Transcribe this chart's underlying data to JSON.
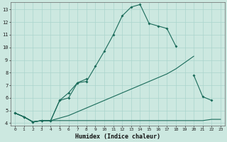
{
  "xlabel": "Humidex (Indice chaleur)",
  "bg_color": "#cce8e0",
  "grid_color": "#aad4cc",
  "line_color": "#1a6b5a",
  "xlim": [
    -0.5,
    23.5
  ],
  "ylim": [
    3.8,
    13.6
  ],
  "yticks": [
    4,
    5,
    6,
    7,
    8,
    9,
    10,
    11,
    12,
    13
  ],
  "xtick_labels": [
    "0",
    "1",
    "2",
    "3",
    "4",
    "5",
    "6",
    "7",
    "8",
    "9",
    "10",
    "11",
    "12",
    "13",
    "14",
    "15",
    "16",
    "17",
    "18",
    "19",
    "20",
    "21",
    "22",
    "23"
  ],
  "series": [
    {
      "x": [
        0,
        1,
        2,
        3,
        4,
        5,
        6,
        7,
        8,
        9,
        10,
        11,
        12,
        13,
        14,
        15,
        16,
        17,
        18,
        19,
        20,
        21,
        22,
        23
      ],
      "y": [
        4.8,
        4.5,
        4.1,
        4.2,
        4.2,
        4.2,
        4.2,
        4.2,
        4.2,
        4.2,
        4.2,
        4.2,
        4.2,
        4.2,
        4.2,
        4.2,
        4.2,
        4.2,
        4.2,
        4.2,
        4.2,
        4.2,
        4.3,
        4.3
      ],
      "marker": false
    },
    {
      "x": [
        0,
        1,
        2,
        3,
        4,
        5,
        6,
        7,
        8,
        9,
        10,
        11,
        12,
        13,
        14,
        15,
        16,
        17,
        18,
        19,
        20,
        21,
        22,
        23
      ],
      "y": [
        4.8,
        4.5,
        4.1,
        4.2,
        4.2,
        4.4,
        4.6,
        4.9,
        5.2,
        5.5,
        5.8,
        6.1,
        6.4,
        6.7,
        7.0,
        7.3,
        7.6,
        7.9,
        8.3,
        8.8,
        9.3,
        null,
        null,
        null
      ],
      "marker": false
    },
    {
      "x": [
        0,
        1,
        2,
        3,
        4,
        5,
        6,
        7,
        8,
        9,
        10,
        11,
        12,
        13,
        14,
        15,
        16,
        17,
        18,
        19,
        20,
        21,
        22,
        23
      ],
      "y": [
        4.8,
        4.5,
        4.1,
        4.2,
        4.2,
        5.8,
        6.4,
        7.2,
        7.5,
        null,
        null,
        null,
        null,
        null,
        null,
        null,
        null,
        null,
        null,
        null,
        7.8,
        6.1,
        5.8,
        null
      ],
      "marker": true
    },
    {
      "x": [
        0,
        1,
        2,
        3,
        4,
        5,
        6,
        7,
        8,
        9,
        10,
        11,
        12,
        13,
        14,
        15,
        16,
        17,
        18,
        19,
        20,
        21,
        22,
        23
      ],
      "y": [
        4.8,
        4.5,
        4.1,
        4.2,
        4.2,
        5.8,
        6.0,
        7.2,
        7.3,
        8.5,
        9.7,
        11.0,
        12.5,
        13.2,
        13.4,
        11.9,
        11.7,
        11.5,
        10.1,
        null,
        null,
        null,
        null,
        null
      ],
      "marker": true
    }
  ]
}
